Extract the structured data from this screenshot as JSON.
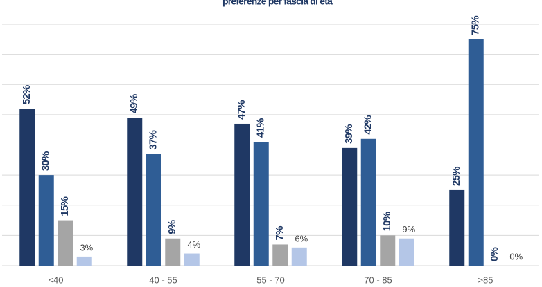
{
  "chart_data": {
    "type": "bar",
    "title": "preferenze per fascia di età",
    "categories": [
      "<40",
      "40 - 55",
      "55 - 70",
      "70 - 85",
      ">85"
    ],
    "series": [
      {
        "color": "#1f3864",
        "values": [
          52,
          49,
          47,
          39,
          25
        ],
        "value_labels": [
          "52%",
          "49%",
          "47%",
          "39%",
          "25%"
        ]
      },
      {
        "color": "#2f5d95",
        "values": [
          30,
          37,
          41,
          42,
          75
        ],
        "value_labels": [
          "30%",
          "37%",
          "41%",
          "42%",
          "75%"
        ]
      },
      {
        "color": "#a5a5a5",
        "values": [
          15,
          9,
          7,
          10,
          0
        ],
        "value_labels": [
          "15%",
          "9%",
          "7%",
          "10%",
          "0%"
        ]
      },
      {
        "color": "#b4c6e7",
        "values": [
          3,
          4,
          6,
          9,
          0
        ],
        "value_labels": [
          "3%",
          "4%",
          "6%",
          "9%",
          "0%"
        ]
      }
    ],
    "ylim": [
      0,
      80
    ],
    "yticks": [
      0,
      10,
      20,
      30,
      40,
      50,
      60,
      70,
      80
    ],
    "grid": true
  }
}
